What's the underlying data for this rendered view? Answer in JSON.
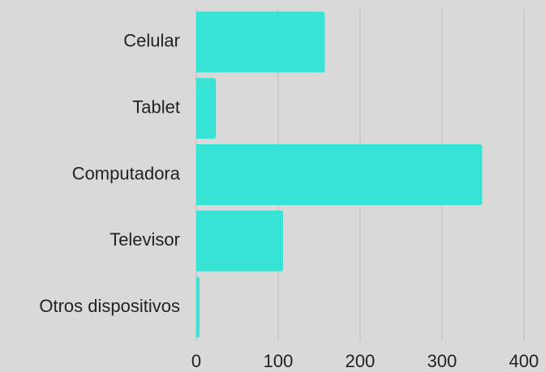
{
  "chart_data": {
    "type": "bar",
    "orientation": "horizontal",
    "categories": [
      "Celular",
      "Tablet",
      "Computadora",
      "Televisor",
      "Otros dispositivos"
    ],
    "values": [
      157,
      24,
      349,
      106,
      4
    ],
    "color": "#36e3d5",
    "xlim": [
      0,
      400
    ],
    "xticks": [
      0,
      100,
      200,
      300,
      400
    ],
    "grid": true
  }
}
